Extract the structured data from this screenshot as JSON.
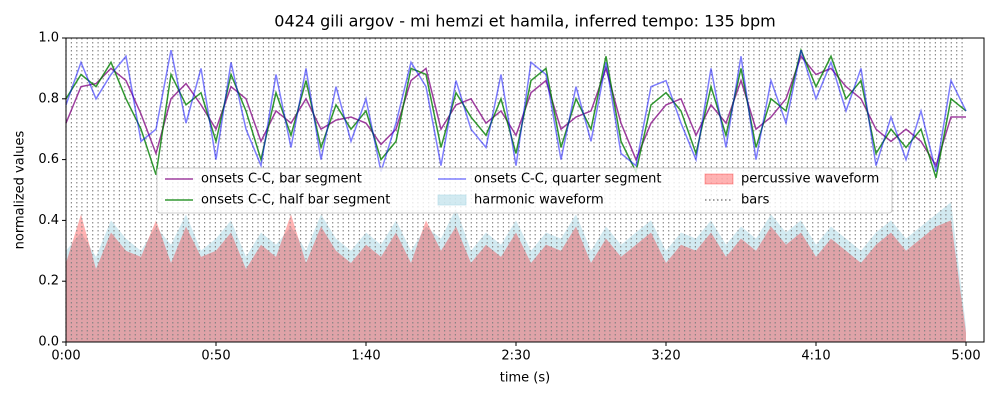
{
  "chart_data": {
    "type": "line",
    "title": "0424 gili argov - mi hemzi et hamila, inferred tempo: 135 bpm",
    "xlabel": "time (s)",
    "ylabel": "normalized values",
    "xlim": [
      0,
      306
    ],
    "ylim": [
      0,
      1
    ],
    "xticks": [
      {
        "value": 0,
        "label": "0:00"
      },
      {
        "value": 50,
        "label": "0:50"
      },
      {
        "value": 100,
        "label": "1:40"
      },
      {
        "value": 150,
        "label": "2:30"
      },
      {
        "value": 200,
        "label": "3:20"
      },
      {
        "value": 250,
        "label": "4:10"
      },
      {
        "value": 300,
        "label": "5:00"
      }
    ],
    "yticks": [
      {
        "value": 0,
        "label": "0.0"
      },
      0.2,
      0.4,
      0.6,
      0.8,
      {
        "value": 1,
        "label": "1.0"
      }
    ],
    "legend_loc": "center",
    "x": [
      0,
      5,
      10,
      15,
      20,
      25,
      30,
      35,
      40,
      45,
      50,
      55,
      60,
      65,
      70,
      75,
      80,
      85,
      90,
      95,
      100,
      105,
      110,
      115,
      120,
      125,
      130,
      135,
      140,
      145,
      150,
      155,
      160,
      165,
      170,
      175,
      180,
      185,
      190,
      195,
      200,
      205,
      210,
      215,
      220,
      225,
      230,
      235,
      240,
      245,
      250,
      255,
      260,
      265,
      270,
      275,
      280,
      285,
      290,
      295,
      300
    ],
    "series": [
      {
        "name": "onsets C-C, bar segment",
        "kind": "line",
        "color": "#800080",
        "alpha": 0.75,
        "values": [
          0.72,
          0.84,
          0.85,
          0.9,
          0.86,
          0.75,
          0.62,
          0.8,
          0.85,
          0.78,
          0.7,
          0.84,
          0.8,
          0.66,
          0.76,
          0.72,
          0.8,
          0.7,
          0.73,
          0.74,
          0.72,
          0.65,
          0.7,
          0.86,
          0.9,
          0.7,
          0.78,
          0.8,
          0.72,
          0.76,
          0.68,
          0.82,
          0.86,
          0.7,
          0.74,
          0.76,
          0.9,
          0.72,
          0.6,
          0.72,
          0.78,
          0.8,
          0.68,
          0.78,
          0.72,
          0.86,
          0.7,
          0.74,
          0.8,
          0.94,
          0.88,
          0.9,
          0.84,
          0.8,
          0.7,
          0.66,
          0.7,
          0.66,
          0.58,
          0.74,
          0.74
        ]
      },
      {
        "name": "onsets C-C, half bar segment",
        "kind": "line",
        "color": "#008000",
        "alpha": 0.8,
        "values": [
          0.8,
          0.88,
          0.84,
          0.92,
          0.8,
          0.7,
          0.55,
          0.88,
          0.78,
          0.82,
          0.66,
          0.88,
          0.76,
          0.6,
          0.82,
          0.68,
          0.86,
          0.64,
          0.78,
          0.7,
          0.76,
          0.6,
          0.66,
          0.9,
          0.88,
          0.64,
          0.82,
          0.74,
          0.68,
          0.8,
          0.62,
          0.86,
          0.9,
          0.64,
          0.8,
          0.7,
          0.94,
          0.66,
          0.56,
          0.78,
          0.82,
          0.76,
          0.62,
          0.84,
          0.68,
          0.9,
          0.64,
          0.8,
          0.76,
          0.96,
          0.84,
          0.94,
          0.8,
          0.86,
          0.62,
          0.7,
          0.64,
          0.7,
          0.54,
          0.8,
          0.76
        ]
      },
      {
        "name": "onsets C-C, quarter segment",
        "kind": "line",
        "color": "#0000ff",
        "alpha": 0.5,
        "values": [
          0.78,
          0.92,
          0.8,
          0.88,
          0.94,
          0.66,
          0.7,
          0.96,
          0.72,
          0.9,
          0.6,
          0.92,
          0.7,
          0.58,
          0.88,
          0.64,
          0.9,
          0.6,
          0.84,
          0.66,
          0.8,
          0.56,
          0.72,
          0.92,
          0.84,
          0.58,
          0.86,
          0.7,
          0.64,
          0.88,
          0.58,
          0.92,
          0.88,
          0.6,
          0.84,
          0.66,
          0.92,
          0.62,
          0.58,
          0.84,
          0.86,
          0.72,
          0.6,
          0.9,
          0.64,
          0.94,
          0.6,
          0.86,
          0.72,
          0.96,
          0.8,
          0.92,
          0.76,
          0.9,
          0.58,
          0.74,
          0.6,
          0.76,
          0.56,
          0.86,
          0.76
        ]
      },
      {
        "name": "harmonic waveform",
        "kind": "area",
        "color": "#add8e6",
        "alpha": 0.55,
        "values": [
          0.3,
          0.36,
          0.28,
          0.4,
          0.34,
          0.3,
          0.38,
          0.32,
          0.42,
          0.3,
          0.34,
          0.4,
          0.28,
          0.36,
          0.32,
          0.38,
          0.3,
          0.42,
          0.34,
          0.3,
          0.36,
          0.32,
          0.4,
          0.3,
          0.38,
          0.34,
          0.44,
          0.3,
          0.36,
          0.32,
          0.4,
          0.3,
          0.36,
          0.34,
          0.42,
          0.3,
          0.38,
          0.32,
          0.36,
          0.4,
          0.3,
          0.36,
          0.34,
          0.4,
          0.32,
          0.38,
          0.34,
          0.42,
          0.36,
          0.4,
          0.32,
          0.38,
          0.34,
          0.3,
          0.36,
          0.4,
          0.34,
          0.38,
          0.42,
          0.46,
          0.05
        ]
      },
      {
        "name": "percussive waveform",
        "kind": "area",
        "color": "#ff0000",
        "alpha": 0.3,
        "values": [
          0.26,
          0.42,
          0.24,
          0.36,
          0.3,
          0.28,
          0.4,
          0.26,
          0.38,
          0.28,
          0.3,
          0.36,
          0.24,
          0.32,
          0.28,
          0.42,
          0.26,
          0.38,
          0.3,
          0.26,
          0.32,
          0.28,
          0.36,
          0.26,
          0.4,
          0.3,
          0.38,
          0.26,
          0.32,
          0.28,
          0.36,
          0.26,
          0.32,
          0.3,
          0.38,
          0.26,
          0.34,
          0.28,
          0.32,
          0.36,
          0.26,
          0.32,
          0.3,
          0.36,
          0.28,
          0.34,
          0.3,
          0.38,
          0.32,
          0.36,
          0.28,
          0.34,
          0.3,
          0.26,
          0.32,
          0.36,
          0.3,
          0.34,
          0.38,
          0.4,
          0.03
        ]
      },
      {
        "name": "bars",
        "kind": "vline",
        "color": "#808080",
        "alpha": 0.9,
        "x": [
          0,
          1.8,
          3.6,
          5.3,
          7.1,
          8.9,
          10.7,
          12.4,
          14.2,
          16,
          17.8,
          19.6,
          21.3,
          23.1,
          24.9,
          26.7,
          28.4,
          30.2,
          32,
          33.8,
          35.6,
          37.3,
          39.1,
          40.9,
          42.7,
          44.4,
          46.2,
          48,
          49.8,
          51.6,
          53.3,
          55.1,
          56.9,
          58.7,
          60.4,
          62.2,
          64,
          65.8,
          67.6,
          69.3,
          71.1,
          72.9,
          74.7,
          76.4,
          78.2,
          80,
          81.8,
          83.6,
          85.3,
          87.1,
          88.9,
          90.7,
          92.4,
          94.2,
          96,
          97.8,
          99.6,
          101.3,
          103.1,
          104.9,
          106.7,
          108.4,
          110.2,
          112,
          113.8,
          115.6,
          117.3,
          119.1,
          120.9,
          122.7,
          124.4,
          126.2,
          128,
          129.8,
          131.6,
          133.3,
          135.1,
          136.9,
          138.7,
          140.4,
          142.2,
          144,
          145.8,
          147.6,
          149.3,
          151.1,
          152.9,
          154.7,
          156.4,
          158.2,
          160,
          161.8,
          163.6,
          165.3,
          167.1,
          168.9,
          170.7,
          172.4,
          174.2,
          176,
          177.8,
          179.6,
          181.3,
          183.1,
          184.9,
          186.7,
          188.4,
          190.2,
          192,
          193.8,
          195.6,
          197.3,
          199.1,
          200.9,
          202.7,
          204.4,
          206.2,
          208,
          209.8,
          211.6,
          213.3,
          215.1,
          216.9,
          218.7,
          220.4,
          222.2,
          224,
          225.8,
          227.6,
          229.3,
          231.1,
          232.9,
          234.7,
          236.4,
          238.2,
          240,
          241.8,
          243.6,
          245.3,
          247.1,
          248.9,
          250.7,
          252.4,
          254.2,
          256,
          257.8,
          259.6,
          261.3,
          263.1,
          264.9,
          266.7,
          268.4,
          270.2,
          272,
          273.8,
          275.6,
          277.3,
          279.1,
          280.9,
          282.7,
          284.4,
          286.2,
          288,
          289.8,
          291.6,
          293.3,
          295.1,
          296.9,
          298.7
        ]
      }
    ]
  }
}
